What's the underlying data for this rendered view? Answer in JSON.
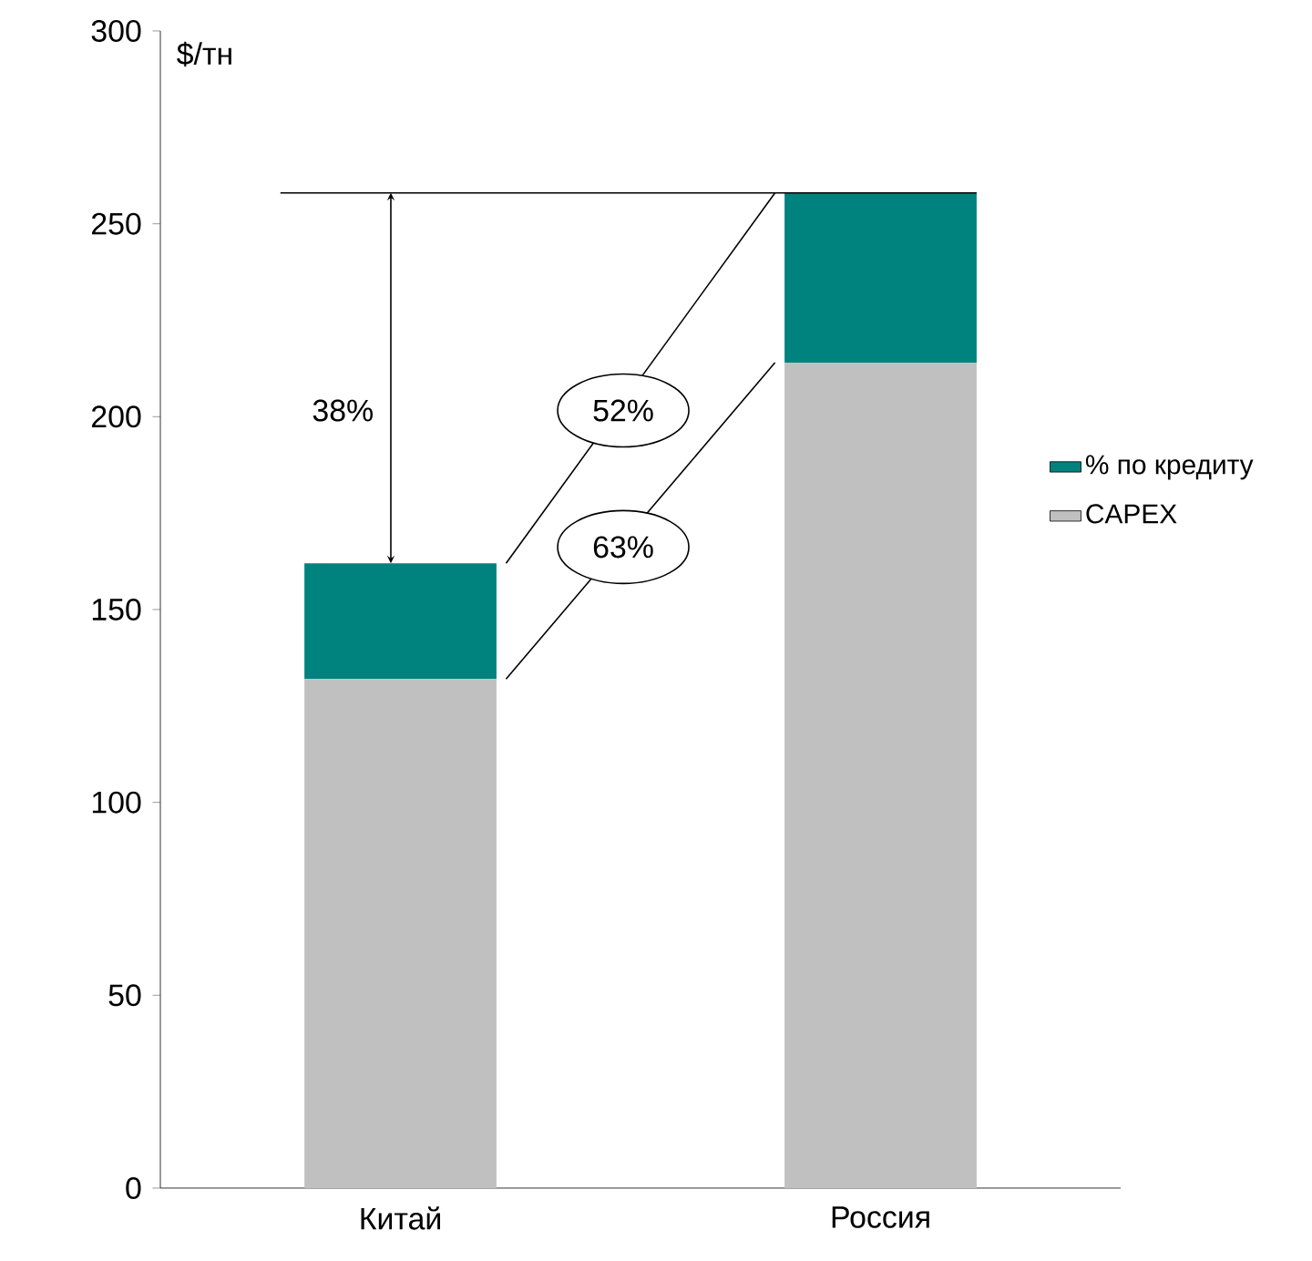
{
  "chart_data": {
    "type": "bar",
    "stacked": true,
    "ylabel": "$/тн",
    "categories": [
      "Китай",
      "Россия"
    ],
    "series": [
      {
        "name": "CAPEX",
        "color": "#c0c0c0",
        "values": [
          132,
          214
        ]
      },
      {
        "name": "% по кредиту",
        "color": "#00827f",
        "values": [
          30,
          44
        ]
      }
    ],
    "ylim": [
      0,
      300
    ],
    "yticks": [
      0,
      50,
      100,
      150,
      200,
      250,
      300
    ],
    "legend": "right",
    "ref_lines": [
      {
        "axis": "y",
        "value": 258,
        "color": "#000000"
      }
    ],
    "annotations": [
      "38%",
      "52%",
      "63%"
    ]
  }
}
